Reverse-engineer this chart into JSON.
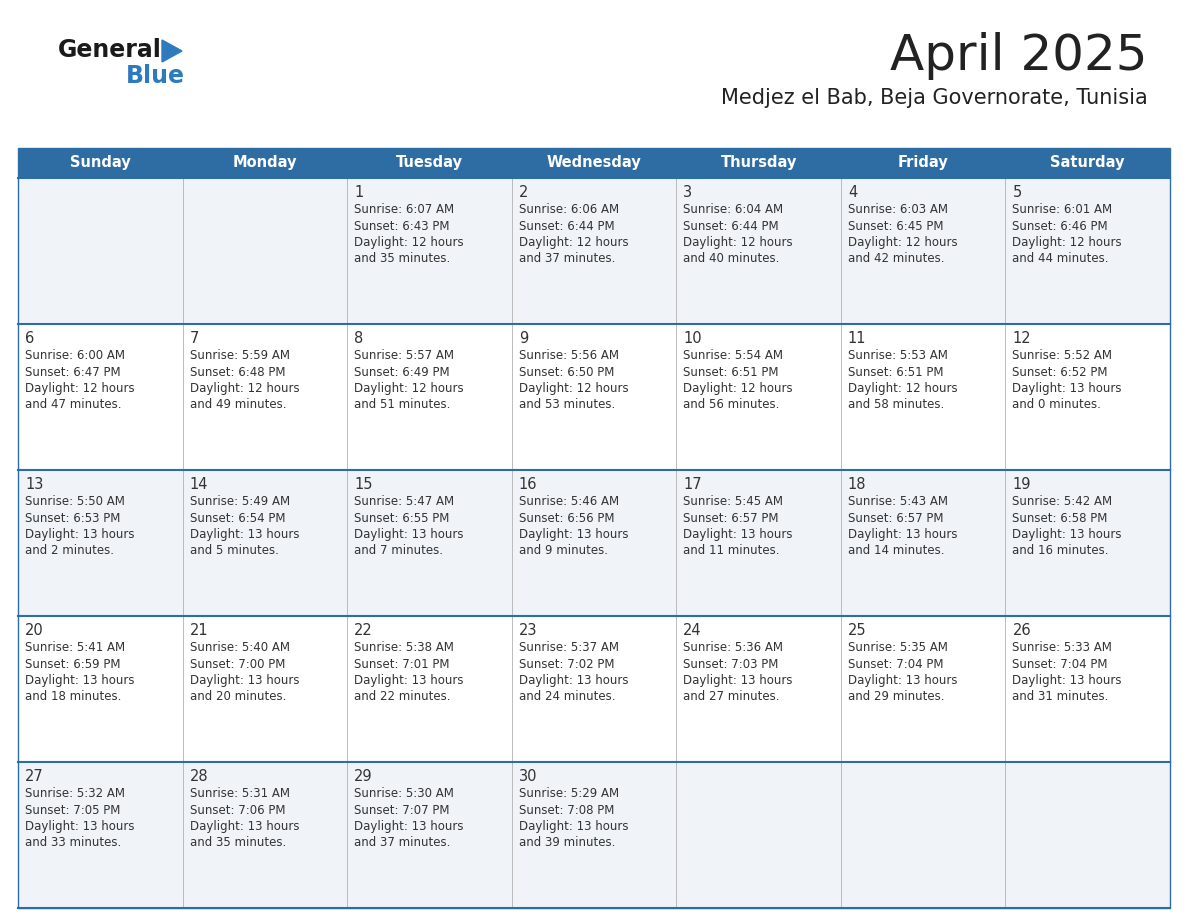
{
  "title": "April 2025",
  "subtitle": "Medjez el Bab, Beja Governorate, Tunisia",
  "header_bg_color": "#2E6DA4",
  "header_text_color": "#FFFFFF",
  "days_of_week": [
    "Sunday",
    "Monday",
    "Tuesday",
    "Wednesday",
    "Thursday",
    "Friday",
    "Saturday"
  ],
  "row_bg_colors": [
    "#F0F4F8",
    "#FFFFFF",
    "#F0F4F8",
    "#FFFFFF",
    "#F0F4F8"
  ],
  "cell_text_color": "#333333",
  "divider_color": "#2E6DA4",
  "title_color": "#222222",
  "subtitle_color": "#222222",
  "logo_general_color": "#1a1a1a",
  "logo_blue_color": "#2E7ABE",
  "calendar_data": [
    [
      null,
      null,
      {
        "day": 1,
        "sunrise": "6:07 AM",
        "sunset": "6:43 PM",
        "daylight_hours": 12,
        "daylight_minutes": 35
      },
      {
        "day": 2,
        "sunrise": "6:06 AM",
        "sunset": "6:44 PM",
        "daylight_hours": 12,
        "daylight_minutes": 37
      },
      {
        "day": 3,
        "sunrise": "6:04 AM",
        "sunset": "6:44 PM",
        "daylight_hours": 12,
        "daylight_minutes": 40
      },
      {
        "day": 4,
        "sunrise": "6:03 AM",
        "sunset": "6:45 PM",
        "daylight_hours": 12,
        "daylight_minutes": 42
      },
      {
        "day": 5,
        "sunrise": "6:01 AM",
        "sunset": "6:46 PM",
        "daylight_hours": 12,
        "daylight_minutes": 44
      }
    ],
    [
      {
        "day": 6,
        "sunrise": "6:00 AM",
        "sunset": "6:47 PM",
        "daylight_hours": 12,
        "daylight_minutes": 47
      },
      {
        "day": 7,
        "sunrise": "5:59 AM",
        "sunset": "6:48 PM",
        "daylight_hours": 12,
        "daylight_minutes": 49
      },
      {
        "day": 8,
        "sunrise": "5:57 AM",
        "sunset": "6:49 PM",
        "daylight_hours": 12,
        "daylight_minutes": 51
      },
      {
        "day": 9,
        "sunrise": "5:56 AM",
        "sunset": "6:50 PM",
        "daylight_hours": 12,
        "daylight_minutes": 53
      },
      {
        "day": 10,
        "sunrise": "5:54 AM",
        "sunset": "6:51 PM",
        "daylight_hours": 12,
        "daylight_minutes": 56
      },
      {
        "day": 11,
        "sunrise": "5:53 AM",
        "sunset": "6:51 PM",
        "daylight_hours": 12,
        "daylight_minutes": 58
      },
      {
        "day": 12,
        "sunrise": "5:52 AM",
        "sunset": "6:52 PM",
        "daylight_hours": 13,
        "daylight_minutes": 0
      }
    ],
    [
      {
        "day": 13,
        "sunrise": "5:50 AM",
        "sunset": "6:53 PM",
        "daylight_hours": 13,
        "daylight_minutes": 2
      },
      {
        "day": 14,
        "sunrise": "5:49 AM",
        "sunset": "6:54 PM",
        "daylight_hours": 13,
        "daylight_minutes": 5
      },
      {
        "day": 15,
        "sunrise": "5:47 AM",
        "sunset": "6:55 PM",
        "daylight_hours": 13,
        "daylight_minutes": 7
      },
      {
        "day": 16,
        "sunrise": "5:46 AM",
        "sunset": "6:56 PM",
        "daylight_hours": 13,
        "daylight_minutes": 9
      },
      {
        "day": 17,
        "sunrise": "5:45 AM",
        "sunset": "6:57 PM",
        "daylight_hours": 13,
        "daylight_minutes": 11
      },
      {
        "day": 18,
        "sunrise": "5:43 AM",
        "sunset": "6:57 PM",
        "daylight_hours": 13,
        "daylight_minutes": 14
      },
      {
        "day": 19,
        "sunrise": "5:42 AM",
        "sunset": "6:58 PM",
        "daylight_hours": 13,
        "daylight_minutes": 16
      }
    ],
    [
      {
        "day": 20,
        "sunrise": "5:41 AM",
        "sunset": "6:59 PM",
        "daylight_hours": 13,
        "daylight_minutes": 18
      },
      {
        "day": 21,
        "sunrise": "5:40 AM",
        "sunset": "7:00 PM",
        "daylight_hours": 13,
        "daylight_minutes": 20
      },
      {
        "day": 22,
        "sunrise": "5:38 AM",
        "sunset": "7:01 PM",
        "daylight_hours": 13,
        "daylight_minutes": 22
      },
      {
        "day": 23,
        "sunrise": "5:37 AM",
        "sunset": "7:02 PM",
        "daylight_hours": 13,
        "daylight_minutes": 24
      },
      {
        "day": 24,
        "sunrise": "5:36 AM",
        "sunset": "7:03 PM",
        "daylight_hours": 13,
        "daylight_minutes": 27
      },
      {
        "day": 25,
        "sunrise": "5:35 AM",
        "sunset": "7:04 PM",
        "daylight_hours": 13,
        "daylight_minutes": 29
      },
      {
        "day": 26,
        "sunrise": "5:33 AM",
        "sunset": "7:04 PM",
        "daylight_hours": 13,
        "daylight_minutes": 31
      }
    ],
    [
      {
        "day": 27,
        "sunrise": "5:32 AM",
        "sunset": "7:05 PM",
        "daylight_hours": 13,
        "daylight_minutes": 33
      },
      {
        "day": 28,
        "sunrise": "5:31 AM",
        "sunset": "7:06 PM",
        "daylight_hours": 13,
        "daylight_minutes": 35
      },
      {
        "day": 29,
        "sunrise": "5:30 AM",
        "sunset": "7:07 PM",
        "daylight_hours": 13,
        "daylight_minutes": 37
      },
      {
        "day": 30,
        "sunrise": "5:29 AM",
        "sunset": "7:08 PM",
        "daylight_hours": 13,
        "daylight_minutes": 39
      },
      null,
      null,
      null
    ]
  ],
  "figsize": [
    11.88,
    9.18
  ],
  "dpi": 100
}
